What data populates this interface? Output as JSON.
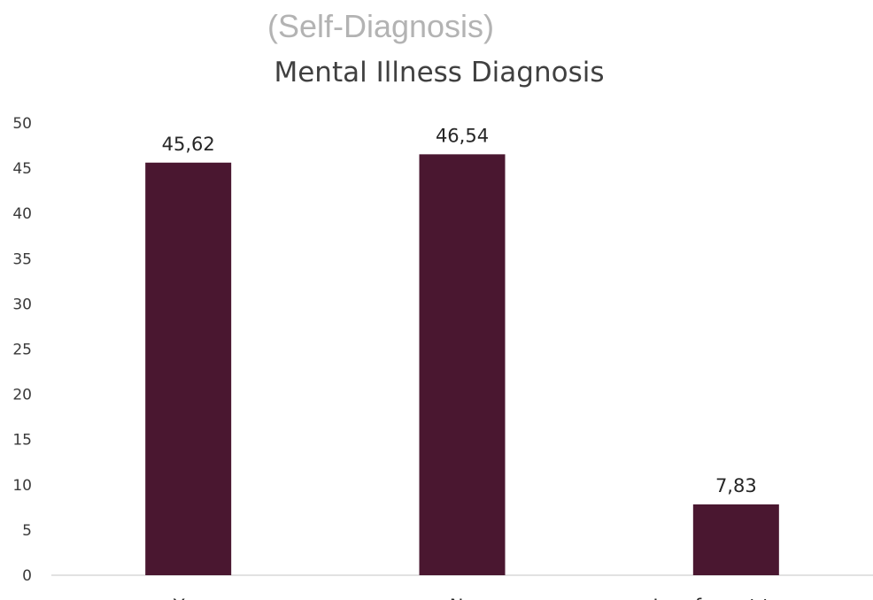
{
  "overlay_title": "(Self-Diagnosis)",
  "chart_data": {
    "type": "bar",
    "title": "Mental Illness Diagnosis",
    "categories": [
      "Yes",
      "No",
      "I prefer not to say"
    ],
    "values": [
      45.62,
      46.54,
      7.83
    ],
    "data_labels": [
      "45,62",
      "46,54",
      "7,83"
    ],
    "ylim": [
      0,
      50
    ],
    "yticks": [
      0,
      5,
      10,
      15,
      20,
      25,
      30,
      35,
      40,
      45,
      50
    ],
    "xlabel": "",
    "ylabel": "",
    "grid": false,
    "bar_color": "#4a1730"
  }
}
